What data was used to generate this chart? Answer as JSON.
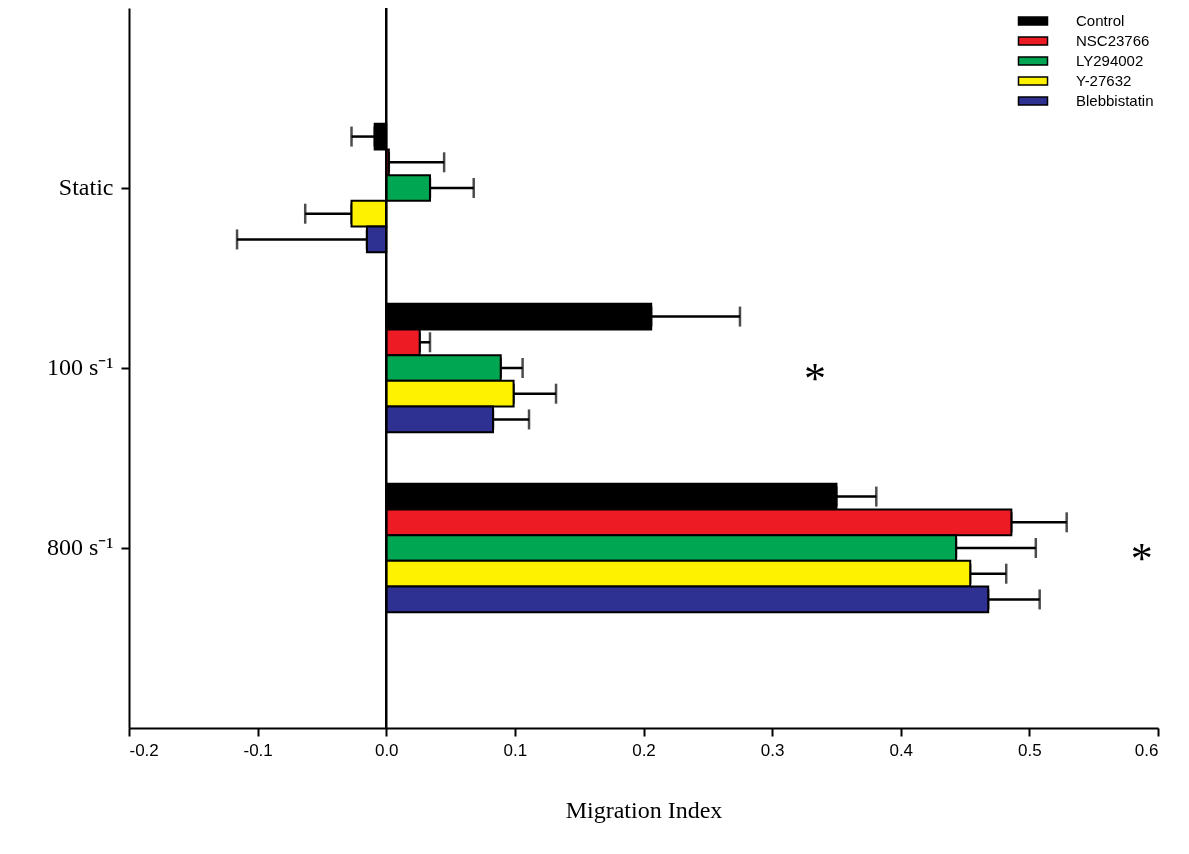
{
  "chart_data": {
    "type": "bar",
    "orientation": "horizontal",
    "xlabel": "Migration Index",
    "categories": [
      "Static",
      "100 s⁻¹",
      "800 s⁻¹"
    ],
    "xlim": [
      -0.2,
      0.6
    ],
    "xticks": [
      -0.2,
      -0.1,
      {
        "value": 0,
        "label": "0.0"
      },
      0.1,
      0.2,
      0.3,
      0.4,
      0.5,
      0.6
    ],
    "grid": false,
    "legend": "top right",
    "ref_lines": [
      {
        "axis": "x",
        "value": 0
      }
    ],
    "series": [
      {
        "name": "Control",
        "color": "#000000",
        "values": [
          -0.009,
          0.206,
          0.35
        ],
        "errors": [
          [
            -0.027,
            -0.009
          ],
          [
            0.206,
            0.275
          ],
          [
            0.35,
            0.381
          ]
        ]
      },
      {
        "name": "NSC23766",
        "color": "#ed1c24",
        "values": [
          0.002,
          0.026,
          0.486
        ],
        "errors": [
          [
            0.002,
            0.045
          ],
          [
            0.026,
            0.034
          ],
          [
            0.486,
            0.529
          ]
        ]
      },
      {
        "name": "LY294002",
        "color": "#00a651",
        "values": [
          0.034,
          0.089,
          0.443
        ],
        "errors": [
          [
            0.034,
            0.068
          ],
          [
            0.089,
            0.106
          ],
          [
            0.443,
            0.505
          ]
        ]
      },
      {
        "name": "Y-27632",
        "color": "#fff200",
        "values": [
          -0.027,
          0.099,
          0.454
        ],
        "errors": [
          [
            -0.063,
            -0.027
          ],
          [
            0.099,
            0.132
          ],
          [
            0.454,
            0.482
          ]
        ]
      },
      {
        "name": "Blebbistatin",
        "color": "#2e3192",
        "values": [
          -0.015,
          0.083,
          0.468
        ],
        "errors": [
          [
            -0.116,
            -0.015
          ],
          [
            0.083,
            0.111
          ],
          [
            0.468,
            0.508
          ]
        ]
      }
    ],
    "annotations": [
      "*",
      "*"
    ]
  }
}
